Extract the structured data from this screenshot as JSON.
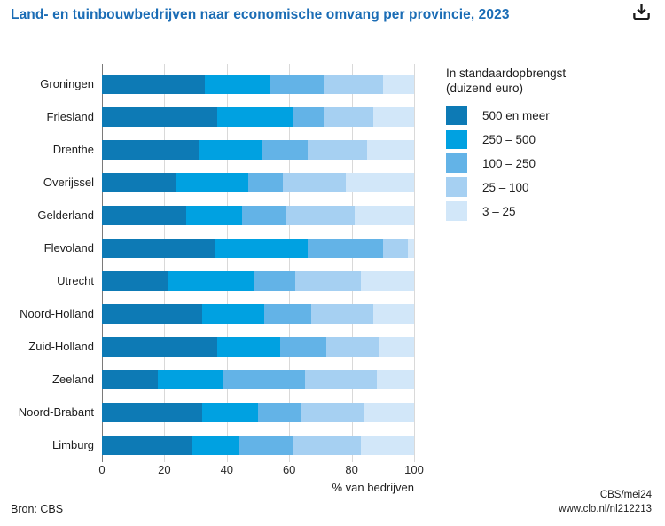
{
  "header": {
    "title": "Land- en tuinbouwbedrijven naar economische omvang per provincie, 2023"
  },
  "chart_data": {
    "type": "bar",
    "orientation": "horizontal",
    "stacked": true,
    "unit": "%",
    "xlabel": "% van bedrijven",
    "xlim": [
      0,
      100
    ],
    "xticks": [
      0,
      20,
      40,
      60,
      80,
      100
    ],
    "grid": true,
    "legend_position": "right",
    "legend_title_line1": "In standaardopbrengst",
    "legend_title_line2": "(duizend euro)",
    "categories": [
      "Groningen",
      "Friesland",
      "Drenthe",
      "Overijssel",
      "Gelderland",
      "Flevoland",
      "Utrecht",
      "Noord-Holland",
      "Zuid-Holland",
      "Zeeland",
      "Noord-Brabant",
      "Limburg"
    ],
    "series": [
      {
        "name": "500 en meer",
        "color": "#0d7ab5",
        "values": [
          33,
          37,
          31,
          24,
          27,
          36,
          21,
          32,
          37,
          18,
          32,
          29
        ]
      },
      {
        "name": "250 – 500",
        "color": "#00a1e1",
        "values": [
          21,
          24,
          20,
          23,
          18,
          30,
          28,
          20,
          20,
          21,
          18,
          15
        ]
      },
      {
        "name": "100 – 250",
        "color": "#63b3e7",
        "values": [
          17,
          10,
          15,
          11,
          14,
          24,
          13,
          15,
          15,
          26,
          14,
          17
        ]
      },
      {
        "name": "25 – 100",
        "color": "#a6d0f2",
        "values": [
          19,
          16,
          19,
          20,
          22,
          8,
          21,
          20,
          17,
          23,
          20,
          22
        ]
      },
      {
        "name": "3 – 25",
        "color": "#d2e7f9",
        "values": [
          10,
          13,
          15,
          22,
          19,
          2,
          17,
          13,
          11,
          12,
          16,
          17
        ]
      }
    ]
  },
  "footer": {
    "source": "Bron: CBS",
    "credit": "CBS/mei24",
    "url": "www.clo.nl/nl212213"
  },
  "colors": {
    "title": "#1a6cb5",
    "gridline": "#d9d9d9",
    "axis": "#7a7a7a"
  }
}
